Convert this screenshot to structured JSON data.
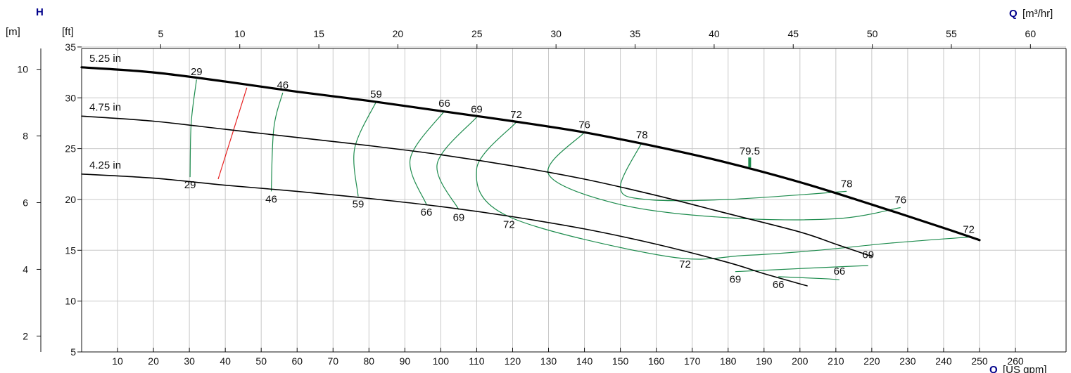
{
  "chart_data": {
    "type": "line",
    "axis_titles": {
      "head": "H",
      "flow": "Q",
      "flow_top_unit": "[m³/hr]",
      "flow_bottom_unit": "[US gpm]",
      "head_m_unit": "[m]",
      "head_ft_unit": "[ft]"
    },
    "x_gpm": {
      "range": [
        0,
        270
      ],
      "ticks": [
        10,
        20,
        30,
        40,
        50,
        60,
        70,
        80,
        90,
        100,
        110,
        120,
        130,
        140,
        150,
        160,
        170,
        180,
        190,
        200,
        210,
        220,
        230,
        240,
        250,
        260
      ]
    },
    "x_m3h": {
      "ticks": [
        5,
        10,
        15,
        20,
        25,
        30,
        35,
        40,
        45,
        50,
        55,
        60
      ]
    },
    "y_ft": {
      "range": [
        5,
        36
      ],
      "ticks": [
        5,
        10,
        15,
        20,
        25,
        30,
        35
      ]
    },
    "y_m": {
      "ticks": [
        2,
        4,
        6,
        8,
        10
      ]
    },
    "grid": true,
    "colors": {
      "impeller": "#000000",
      "efficiency": "#1e8c4e",
      "npsh_boundary": "#e62020",
      "bep_marker": "#1e8c4e",
      "axis_q": "#00008b"
    },
    "impeller_curves": [
      {
        "name": "5.25 in",
        "points": [
          [
            0,
            33.0
          ],
          [
            20,
            32.5
          ],
          [
            40,
            31.6
          ],
          [
            60,
            30.6
          ],
          [
            80,
            29.7
          ],
          [
            100,
            28.7
          ],
          [
            120,
            27.7
          ],
          [
            140,
            26.6
          ],
          [
            160,
            25.2
          ],
          [
            180,
            23.6
          ],
          [
            200,
            21.7
          ],
          [
            220,
            19.5
          ],
          [
            240,
            17.2
          ],
          [
            250,
            16.0
          ]
        ]
      },
      {
        "name": "4.75 in",
        "points": [
          [
            0,
            28.2
          ],
          [
            20,
            27.7
          ],
          [
            40,
            26.9
          ],
          [
            60,
            26.1
          ],
          [
            80,
            25.3
          ],
          [
            100,
            24.4
          ],
          [
            120,
            23.3
          ],
          [
            140,
            22.0
          ],
          [
            160,
            20.4
          ],
          [
            180,
            18.6
          ],
          [
            200,
            16.8
          ],
          [
            210,
            15.6
          ],
          [
            220,
            14.4
          ]
        ]
      },
      {
        "name": "4.25 in",
        "points": [
          [
            0,
            22.5
          ],
          [
            20,
            22.1
          ],
          [
            40,
            21.4
          ],
          [
            60,
            20.8
          ],
          [
            80,
            20.1
          ],
          [
            100,
            19.3
          ],
          [
            120,
            18.3
          ],
          [
            140,
            17.1
          ],
          [
            160,
            15.6
          ],
          [
            180,
            13.8
          ],
          [
            190,
            12.7
          ],
          [
            200,
            11.7
          ],
          [
            202,
            11.5
          ]
        ]
      }
    ],
    "efficiency_contours": [
      {
        "label": "29",
        "points": [
          [
            32.0,
            31.8
          ],
          [
            30.5,
            27.5
          ],
          [
            30.2,
            22.2
          ]
        ]
      },
      {
        "label": "46",
        "points": [
          [
            56.0,
            30.5
          ],
          [
            53.5,
            27.0
          ],
          [
            52.8,
            20.8
          ]
        ]
      },
      {
        "label": "59",
        "points": [
          [
            82.0,
            29.6
          ],
          [
            76.0,
            25.0
          ],
          [
            77.0,
            20.3
          ]
        ]
      },
      {
        "label": "66",
        "points": [
          [
            101.0,
            28.7
          ],
          [
            91.5,
            24.0
          ],
          [
            96.0,
            19.5
          ]
        ]
      },
      {
        "label": "69",
        "points": [
          [
            110.0,
            28.1
          ],
          [
            99.0,
            23.5
          ],
          [
            105.0,
            19.0
          ]
        ]
      },
      {
        "label": "72",
        "points": [
          [
            121.0,
            27.6
          ],
          [
            110.0,
            23.0
          ],
          [
            119.0,
            18.3
          ],
          [
            163.0,
            14.4
          ],
          [
            185.0,
            14.5
          ],
          [
            205.0,
            15.0
          ],
          [
            225.0,
            15.7
          ],
          [
            247.0,
            16.3
          ]
        ]
      },
      {
        "label": "76",
        "points": [
          [
            140.0,
            26.6
          ],
          [
            130.0,
            22.5
          ],
          [
            150.0,
            19.5
          ],
          [
            180.0,
            18.2
          ],
          [
            210.0,
            18.1
          ],
          [
            228.0,
            19.2
          ]
        ]
      },
      {
        "label": "78",
        "points": [
          [
            156.0,
            25.6
          ],
          [
            150.0,
            21.2
          ],
          [
            157.0,
            20.0
          ],
          [
            180.0,
            20.0
          ],
          [
            213.0,
            20.8
          ]
        ]
      },
      {
        "label": "69",
        "points": [
          [
            182.0,
            12.9
          ],
          [
            200.0,
            13.2
          ],
          [
            219.0,
            13.5
          ]
        ]
      },
      {
        "label": "66",
        "points": [
          [
            194.0,
            12.4
          ],
          [
            207.0,
            12.2
          ],
          [
            211.0,
            12.1
          ]
        ]
      }
    ],
    "efficiency_labels": [
      {
        "text": "29",
        "at": [
          30.2,
          22.2
        ],
        "place": "below"
      },
      {
        "text": "29",
        "at": [
          32.0,
          31.8
        ],
        "place": "above"
      },
      {
        "text": "46",
        "at": [
          52.8,
          20.8
        ],
        "place": "below"
      },
      {
        "text": "46",
        "at": [
          56.0,
          30.5
        ],
        "place": "above"
      },
      {
        "text": "59",
        "at": [
          77.0,
          20.3
        ],
        "place": "below"
      },
      {
        "text": "59",
        "at": [
          82.0,
          29.6
        ],
        "place": "above"
      },
      {
        "text": "66",
        "at": [
          96.0,
          19.5
        ],
        "place": "below"
      },
      {
        "text": "66",
        "at": [
          101.0,
          28.7
        ],
        "place": "above"
      },
      {
        "text": "69",
        "at": [
          105.0,
          19.0
        ],
        "place": "below"
      },
      {
        "text": "69",
        "at": [
          110.0,
          28.1
        ],
        "place": "above"
      },
      {
        "text": "72",
        "at": [
          119.0,
          18.3
        ],
        "place": "below"
      },
      {
        "text": "72",
        "at": [
          121.0,
          27.6
        ],
        "place": "above"
      },
      {
        "text": "76",
        "at": [
          140.0,
          26.6
        ],
        "place": "above"
      },
      {
        "text": "78",
        "at": [
          156.0,
          25.6
        ],
        "place": "above"
      },
      {
        "text": "78",
        "at": [
          213.0,
          20.8
        ],
        "place": "above"
      },
      {
        "text": "76",
        "at": [
          228.0,
          19.2
        ],
        "place": "above"
      },
      {
        "text": "72",
        "at": [
          247.0,
          16.3
        ],
        "place": "above"
      },
      {
        "text": "72",
        "at": [
          168.0,
          14.4
        ],
        "place": "below"
      },
      {
        "text": "69",
        "at": [
          219.0,
          13.8
        ],
        "place": "above"
      },
      {
        "text": "69",
        "at": [
          182.0,
          12.9
        ],
        "place": "below"
      },
      {
        "text": "66",
        "at": [
          211.0,
          12.2
        ],
        "place": "above"
      },
      {
        "text": "66",
        "at": [
          194.0,
          12.4
        ],
        "place": "below"
      }
    ],
    "npsh_line": {
      "points": [
        [
          46.0,
          31.0
        ],
        [
          38.0,
          22.0
        ]
      ]
    },
    "bep": {
      "label": "79.5",
      "flow_gpm": 186,
      "head_ft": 23.3
    }
  }
}
